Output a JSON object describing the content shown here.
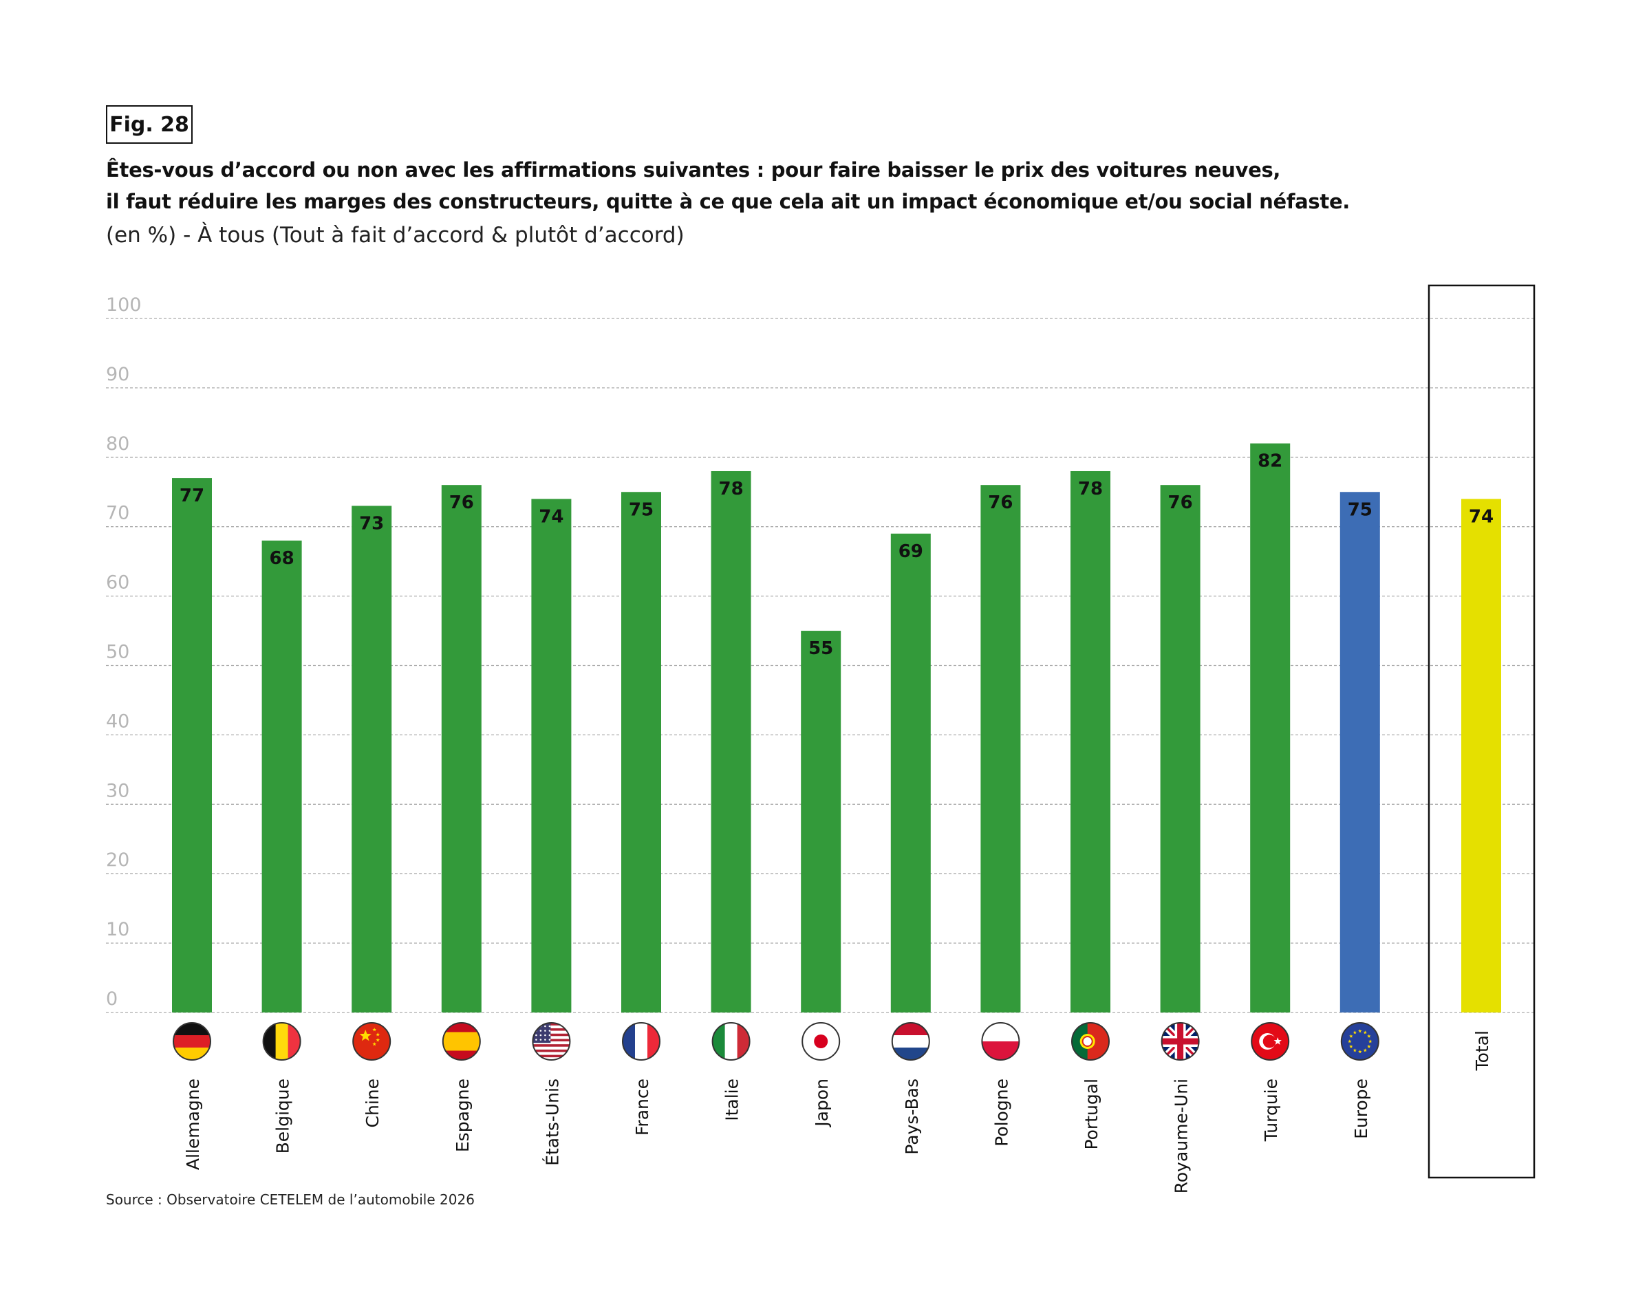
{
  "figure": {
    "label": "Fig. 28",
    "title_line1": "Êtes-vous d’accord ou non avec les affirmations suivantes : pour faire baisser le prix des voitures neuves,",
    "title_line2": "il faut réduire les marges des constructeurs, quitte à ce que cela ait un impact économique et/ou social néfaste.",
    "subtitle": "(en %) - À tous (Tout à fait d’accord & plutôt d’accord)",
    "source": "Source : Observatoire CETELEM de l’automobile 2026"
  },
  "colors": {
    "country": "#339a3a",
    "europe": "#3d6db5",
    "total": "#e5e000",
    "grid": "#aaaaaa",
    "tick": "#b5b5b5"
  },
  "chart_data": {
    "type": "bar",
    "title": "Êtes-vous d’accord ou non avec les affirmations suivantes : pour faire baisser le prix des voitures neuves, il faut réduire les marges des constructeurs, quitte à ce que cela ait un impact économique et/ou social néfaste.",
    "xlabel": "",
    "ylabel": "(en %)",
    "ylim": [
      0,
      100
    ],
    "yticks": [
      0,
      10,
      20,
      30,
      40,
      50,
      60,
      70,
      80,
      90,
      100
    ],
    "grid": true,
    "categories": [
      "Allemagne",
      "Belgique",
      "Chine",
      "Espagne",
      "États-Unis",
      "France",
      "Italie",
      "Japon",
      "Pays-Bas",
      "Pologne",
      "Portugal",
      "Royaume-Uni",
      "Turquie",
      "Europe",
      "Total"
    ],
    "values": [
      77,
      68,
      73,
      76,
      74,
      75,
      78,
      55,
      69,
      76,
      78,
      76,
      82,
      75,
      74
    ],
    "groups": [
      "country",
      "country",
      "country",
      "country",
      "country",
      "country",
      "country",
      "country",
      "country",
      "country",
      "country",
      "country",
      "country",
      "europe",
      "total"
    ],
    "flags": [
      "germany-flag",
      "belgium-flag",
      "china-flag",
      "spain-flag",
      "usa-flag",
      "france-flag",
      "italy-flag",
      "japan-flag",
      "netherlands-flag",
      "poland-flag",
      "portugal-flag",
      "uk-flag",
      "turkey-flag",
      "eu-flag",
      ""
    ]
  }
}
